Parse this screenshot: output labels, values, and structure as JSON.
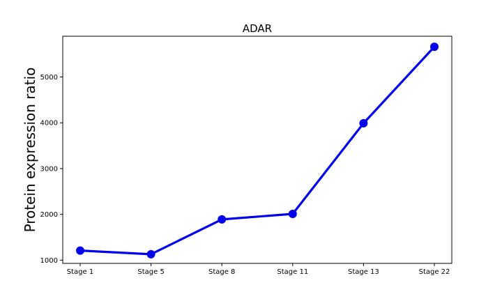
{
  "chart_data": {
    "type": "line",
    "title": "ADAR",
    "xlabel": "",
    "ylabel": "Protein expression ratio",
    "categories": [
      "Stage 1",
      "Stage 5",
      "Stage 8",
      "Stage 11",
      "Stage 13",
      "Stage 22"
    ],
    "series": [
      {
        "values": [
          1210,
          1130,
          1890,
          2010,
          3990,
          5660
        ],
        "color": "#0000ee"
      }
    ],
    "yticks": [
      1000,
      2000,
      3000,
      4000,
      5000
    ],
    "ytick_labels": [
      "1000",
      "2000",
      "3000",
      "4000",
      "5000"
    ],
    "ylim": [
      930,
      5890
    ],
    "grid": false,
    "legend": false
  }
}
